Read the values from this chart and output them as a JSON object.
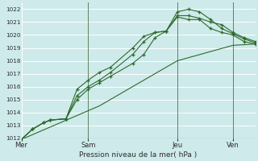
{
  "bg_color": "#ceeaea",
  "plot_bg_color": "#ceeaea",
  "grid_color": "#aacccc",
  "line_color": "#2d6a2d",
  "border_color": "#336633",
  "title": "Pression niveau de la mer( hPa )",
  "ylim": [
    1012,
    1022.5
  ],
  "yticks": [
    1012,
    1013,
    1014,
    1015,
    1016,
    1017,
    1018,
    1019,
    1020,
    1021,
    1022
  ],
  "xtick_labels": [
    "Mer",
    "Sam",
    "Jeu",
    "Ven"
  ],
  "xtick_positions": [
    0.0,
    3.0,
    7.0,
    9.5
  ],
  "vline_positions": [
    3.0,
    7.0,
    9.5
  ],
  "xlim": [
    0,
    10.5
  ],
  "lines": [
    {
      "x": [
        0,
        0.5,
        1.0,
        1.3,
        2.0,
        2.5,
        3.0,
        3.5,
        4.0,
        5.0,
        5.5,
        6.0,
        6.5,
        7.0,
        7.5,
        8.0,
        8.5,
        9.0,
        9.5,
        10.0,
        10.5
      ],
      "y": [
        1011.9,
        1012.7,
        1013.2,
        1013.4,
        1013.5,
        1015.8,
        1016.5,
        1017.1,
        1017.5,
        1019.0,
        1019.9,
        1020.2,
        1020.3,
        1021.4,
        1021.2,
        1021.2,
        1020.5,
        1020.2,
        1020.0,
        1019.5,
        1019.3
      ],
      "marker": "+"
    },
    {
      "x": [
        0,
        0.5,
        1.0,
        1.3,
        2.0,
        2.5,
        3.0,
        3.5,
        4.0,
        5.0,
        5.5,
        6.0,
        6.5,
        7.0,
        7.5,
        8.0,
        8.5,
        9.0,
        9.5,
        10.0,
        10.5
      ],
      "y": [
        1011.9,
        1012.7,
        1013.2,
        1013.4,
        1013.5,
        1015.3,
        1016.0,
        1016.5,
        1017.1,
        1018.5,
        1019.5,
        1020.2,
        1020.3,
        1021.5,
        1021.5,
        1021.3,
        1021.0,
        1020.8,
        1020.2,
        1019.8,
        1019.5
      ],
      "marker": "+"
    },
    {
      "x": [
        0,
        0.5,
        1.0,
        1.3,
        2.0,
        2.5,
        3.0,
        3.5,
        4.0,
        5.0,
        5.5,
        6.0,
        6.5,
        7.0,
        7.5,
        8.0,
        8.5,
        9.0,
        9.5,
        10.0,
        10.5
      ],
      "y": [
        1011.9,
        1012.7,
        1013.2,
        1013.4,
        1013.5,
        1015.0,
        1015.8,
        1016.3,
        1016.8,
        1017.8,
        1018.5,
        1019.8,
        1020.3,
        1021.8,
        1022.0,
        1021.8,
        1021.2,
        1020.5,
        1020.1,
        1019.7,
        1019.4
      ],
      "marker": "+"
    },
    {
      "x": [
        0,
        3.5,
        7.0,
        9.5,
        10.5
      ],
      "y": [
        1011.9,
        1014.5,
        1018.0,
        1019.2,
        1019.3
      ],
      "marker": null
    }
  ]
}
